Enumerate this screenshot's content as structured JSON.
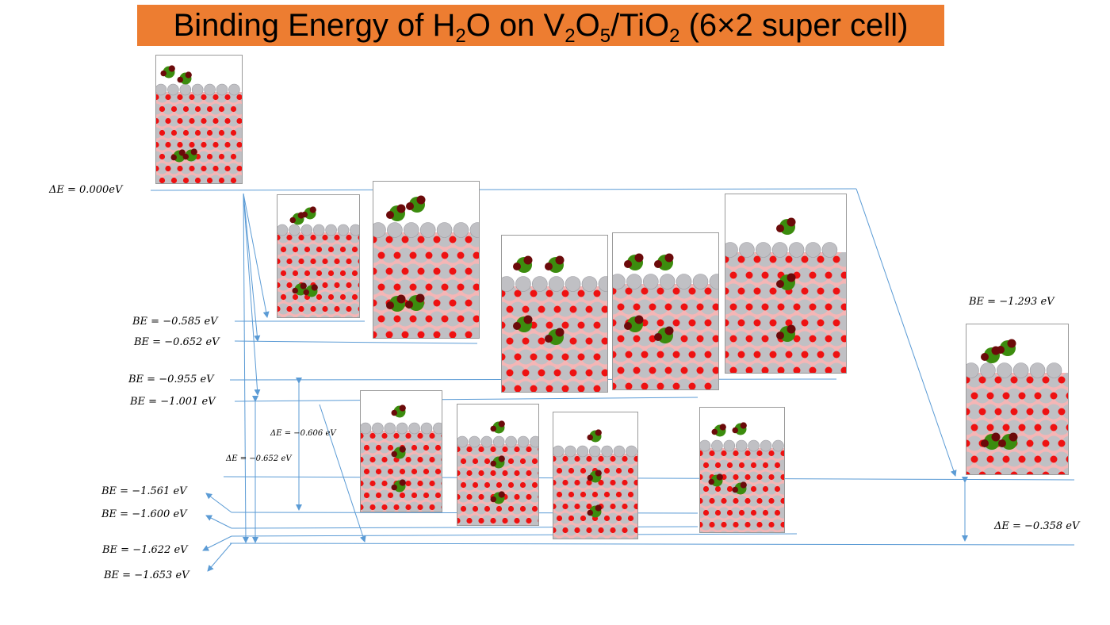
{
  "title": {
    "prefix": "Binding Energy of H",
    "s1": "2",
    "m1": "O on V",
    "s2": "2",
    "m2": "O",
    "s3": "5",
    "m3": "/TiO",
    "s4": "2",
    "suffix": " (6×2  super cell)"
  },
  "colors": {
    "title_bg": "#ED7D31",
    "line": "#5B9BD5",
    "ti_atom": "#C0C0C4",
    "o_atom": "#EE1111",
    "v_atom": "#3C8C0E",
    "h2o_o": "#6B0A0A",
    "pink": "#F4B6B6"
  },
  "labels": {
    "de0": "ΔE = 0.000eV",
    "be0585": "BE = −0.585 eV",
    "be0652": "BE = −0.652 eV",
    "be0955": "BE = −0.955 eV",
    "be1001": "BE = −1.001 eV",
    "be1293": "BE = −1.293 eV",
    "be1561": "BE = −1.561 eV",
    "be1600": "BE = −1.600 eV",
    "be1622": "BE = −1.622 eV",
    "be1653": "BE = −1.653 eV",
    "de0606": "ΔE = −0.606 eV",
    "de0652": "ΔE = −0.652 eV",
    "de0358": "ΔE = −0.358 eV"
  },
  "icons": {
    "structures": "atomic-structure-icon"
  }
}
